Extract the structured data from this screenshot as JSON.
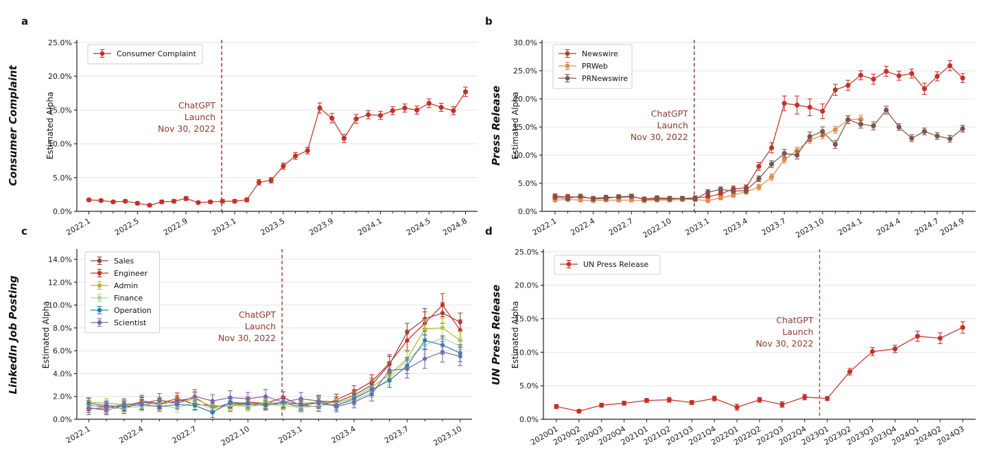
{
  "figure": {
    "background": "#ffffff",
    "grid_color": "#e4e4e4",
    "spine_color": "#1f1f1f",
    "tick_text_color": "#1a1a1a",
    "annotation_color": "#8e3a2c",
    "launch_label_lines": [
      "ChatGPT",
      "Launch",
      "Nov 30, 2022"
    ]
  },
  "chart_data": [
    {
      "id": "a",
      "type": "line",
      "panel_label": "a",
      "outer_title": "Consumer Complaint",
      "ylabel": "Estimated Alpha",
      "legend_position": "top-left",
      "grid": "horizontal",
      "x": [
        "2022.1",
        "2022.2",
        "2022.3",
        "2022.4",
        "2022.5",
        "2022.6",
        "2022.7",
        "2022.8",
        "2022.9",
        "2022.10",
        "2022.11",
        "2022.12",
        "2023.1",
        "2023.2",
        "2023.3",
        "2023.4",
        "2023.5",
        "2023.6",
        "2023.7",
        "2023.8",
        "2023.9",
        "2023.10",
        "2023.11",
        "2023.12",
        "2024.1",
        "2024.2",
        "2024.3",
        "2024.4",
        "2024.5",
        "2024.6",
        "2024.7",
        "2024.8"
      ],
      "x_tick_indices": [
        0,
        4,
        8,
        12,
        16,
        20,
        24,
        28,
        31
      ],
      "yticks": [
        0,
        5,
        10,
        15,
        20,
        25
      ],
      "ylim": [
        0,
        25.4
      ],
      "launch_index": 10.93,
      "launch_color": "#7e2f28",
      "series": [
        {
          "name": "Consumer Complaint",
          "color": "#c43227",
          "values": [
            1.7,
            1.6,
            1.4,
            1.5,
            1.2,
            0.9,
            1.4,
            1.5,
            1.9,
            1.3,
            1.4,
            1.5,
            1.5,
            1.7,
            4.3,
            4.6,
            6.7,
            8.2,
            9.0,
            15.3,
            13.8,
            10.8,
            13.7,
            14.3,
            14.2,
            14.9,
            15.3,
            15.0,
            16.0,
            15.4,
            14.9,
            17.7
          ],
          "errors": [
            0.2,
            0.2,
            0.2,
            0.2,
            0.2,
            0.2,
            0.25,
            0.25,
            0.3,
            0.2,
            0.2,
            0.25,
            0.25,
            0.3,
            0.4,
            0.4,
            0.45,
            0.5,
            0.5,
            0.75,
            0.7,
            0.6,
            0.65,
            0.6,
            0.6,
            0.6,
            0.6,
            0.6,
            0.65,
            0.6,
            0.6,
            0.7
          ]
        }
      ]
    },
    {
      "id": "b",
      "type": "line",
      "panel_label": "b",
      "outer_title": "Press Release",
      "ylabel": "Estimated Alpha",
      "legend_position": "top-left",
      "grid": "horizontal",
      "x": [
        "2022.1",
        "2022.2",
        "2022.3",
        "2022.4",
        "2022.5",
        "2022.6",
        "2022.7",
        "2022.8",
        "2022.9",
        "2022.10",
        "2022.11",
        "2022.12",
        "2023.1",
        "2023.2",
        "2023.3",
        "2023.4",
        "2023.5",
        "2023.6",
        "2023.7",
        "2023.8",
        "2023.9",
        "2023.10",
        "2023.11",
        "2023.12",
        "2024.1",
        "2024.2",
        "2024.3",
        "2024.4",
        "2024.5",
        "2024.6",
        "2024.7",
        "2024.8",
        "2024.9"
      ],
      "x_tick_indices": [
        0,
        3,
        6,
        9,
        12,
        15,
        18,
        21,
        24,
        27,
        30,
        32
      ],
      "yticks": [
        0,
        5,
        10,
        15,
        20,
        25,
        30
      ],
      "ylim": [
        0,
        30.5
      ],
      "launch_index": 10.93,
      "launch_color": "#7e2f28",
      "series": [
        {
          "name": "Newswire",
          "color": "#c43227",
          "values": [
            2.7,
            2.6,
            2.5,
            2.3,
            2.5,
            2.5,
            2.6,
            2.2,
            2.4,
            2.3,
            2.3,
            2.4,
            2.6,
            3.1,
            4.0,
            4.2,
            8.0,
            11.3,
            19.2,
            18.9,
            18.5,
            17.8,
            21.6,
            22.4,
            24.2,
            23.5,
            24.9,
            24.1,
            24.5,
            21.8,
            24.0,
            25.9,
            23.7
          ],
          "errors": [
            0.4,
            0.4,
            0.35,
            0.35,
            0.35,
            0.35,
            0.4,
            0.35,
            0.35,
            0.35,
            0.35,
            0.35,
            0.4,
            0.45,
            0.5,
            0.5,
            0.7,
            0.9,
            1.3,
            1.6,
            1.5,
            1.3,
            1.0,
            0.9,
            0.8,
            0.9,
            0.9,
            0.8,
            0.8,
            1.0,
            0.8,
            0.9,
            0.8
          ]
        },
        {
          "name": "PRWeb",
          "color": "#e58b4a",
          "values": [
            2.0,
            2.1,
            2.0,
            1.9,
            2.0,
            2.0,
            2.0,
            1.9,
            2.0,
            2.0,
            2.1,
            2.1,
            1.9,
            2.4,
            2.9,
            3.5,
            4.3,
            6.1,
            9.2,
            10.8,
            12.7,
            13.5,
            14.5,
            16.3,
            16.4
          ],
          "errors": [
            0.3,
            0.3,
            0.3,
            0.3,
            0.3,
            0.3,
            0.3,
            0.3,
            0.3,
            0.3,
            0.3,
            0.3,
            0.3,
            0.35,
            0.4,
            0.45,
            0.5,
            0.55,
            0.6,
            0.6,
            0.6,
            0.6,
            0.6,
            0.65,
            0.7
          ]
        },
        {
          "name": "PRNewswire",
          "color": "#7a564e",
          "values": [
            2.5,
            2.3,
            2.7,
            2.2,
            2.3,
            2.6,
            2.7,
            2.1,
            2.2,
            2.2,
            2.3,
            2.2,
            3.4,
            3.9,
            3.6,
            3.7,
            5.8,
            8.4,
            10.3,
            10.0,
            13.3,
            14.2,
            11.9,
            16.3,
            15.5,
            15.2,
            18.0,
            15.0,
            13.0,
            14.2,
            13.4,
            12.9,
            14.7
          ],
          "errors": [
            0.35,
            0.35,
            0.35,
            0.35,
            0.35,
            0.35,
            0.35,
            0.35,
            0.35,
            0.35,
            0.35,
            0.35,
            0.45,
            0.45,
            0.4,
            0.45,
            0.5,
            0.6,
            0.7,
            0.7,
            0.8,
            0.8,
            0.7,
            0.7,
            0.7,
            0.7,
            0.7,
            0.6,
            0.6,
            0.6,
            0.6,
            0.6,
            0.6
          ]
        }
      ]
    },
    {
      "id": "c",
      "type": "line",
      "panel_label": "c",
      "outer_title": "LinkedIn Job Posting",
      "ylabel": "Estimated Alpha",
      "legend_position": "top-left",
      "grid": "horizontal",
      "x": [
        "2022.1",
        "2022.2",
        "2022.3",
        "2022.4",
        "2022.5",
        "2022.6",
        "2022.7",
        "2022.8",
        "2022.9",
        "2022.10",
        "2022.11",
        "2022.12",
        "2023.1",
        "2023.2",
        "2023.3",
        "2023.4",
        "2023.5",
        "2023.6",
        "2023.7",
        "2023.8",
        "2023.9",
        "2023.10"
      ],
      "x_tick_indices": [
        0,
        3,
        6,
        9,
        12,
        15,
        18,
        21
      ],
      "yticks": [
        0,
        2,
        4,
        6,
        8,
        10,
        12,
        14
      ],
      "ylim": [
        0,
        14.9
      ],
      "launch_index": 10.93,
      "launch_color": "#8a3a2c",
      "series": [
        {
          "name": "Sales",
          "color": "#8a4a42",
          "values": [
            1.0,
            0.8,
            1.2,
            1.5,
            1.3,
            1.6,
            1.9,
            1.0,
            1.4,
            1.3,
            1.2,
            1.4,
            1.1,
            1.6,
            1.5,
            2.1,
            3.0,
            4.8,
            7.6,
            8.8,
            9.3,
            8.5
          ],
          "errors": [
            0.4,
            0.4,
            0.4,
            0.45,
            0.4,
            0.45,
            0.5,
            0.4,
            0.45,
            0.4,
            0.4,
            0.45,
            0.4,
            0.45,
            0.45,
            0.5,
            0.6,
            0.7,
            0.8,
            0.9,
            0.9,
            0.8
          ]
        },
        {
          "name": "Engineer",
          "color": "#cc2d25",
          "values": [
            1.2,
            1.1,
            0.9,
            1.6,
            1.4,
            1.8,
            1.3,
            1.2,
            1.1,
            1.5,
            1.4,
            1.9,
            1.2,
            1.1,
            1.7,
            2.4,
            3.3,
            4.9,
            6.9,
            8.4,
            10.0,
            7.8
          ],
          "errors": [
            0.45,
            0.4,
            0.4,
            0.5,
            0.45,
            0.5,
            0.45,
            0.4,
            0.4,
            0.45,
            0.45,
            0.5,
            0.4,
            0.4,
            0.5,
            0.55,
            0.6,
            0.75,
            0.9,
            1.0,
            1.0,
            0.9
          ]
        },
        {
          "name": "Admin",
          "color": "#b9ba2c",
          "values": [
            1.5,
            1.4,
            1.3,
            1.2,
            1.5,
            1.4,
            1.8,
            1.1,
            1.3,
            1.2,
            1.5,
            1.3,
            1.4,
            1.5,
            1.4,
            1.9,
            2.8,
            3.9,
            5.3,
            7.9,
            8.0,
            6.9
          ],
          "errors": [
            0.4,
            0.4,
            0.4,
            0.4,
            0.45,
            0.4,
            0.5,
            0.4,
            0.4,
            0.4,
            0.45,
            0.4,
            0.4,
            0.45,
            0.4,
            0.5,
            0.55,
            0.65,
            0.75,
            0.85,
            0.85,
            0.8
          ]
        },
        {
          "name": "Finance",
          "color": "#aed6a0",
          "values": [
            1.3,
            0.9,
            1.0,
            1.1,
            1.2,
            1.0,
            1.5,
            0.9,
            1.2,
            1.1,
            1.3,
            1.2,
            1.0,
            1.2,
            1.3,
            1.6,
            2.4,
            3.6,
            5.2,
            6.5,
            7.1,
            6.4
          ],
          "errors": [
            0.45,
            0.4,
            0.4,
            0.4,
            0.4,
            0.4,
            0.45,
            0.4,
            0.4,
            0.4,
            0.4,
            0.4,
            0.4,
            0.4,
            0.4,
            0.45,
            0.5,
            0.6,
            0.7,
            0.8,
            0.8,
            0.75
          ]
        },
        {
          "name": "Operation",
          "color": "#2e7eb3",
          "values": [
            1.4,
            1.2,
            1.1,
            1.3,
            1.1,
            1.3,
            1.2,
            0.6,
            1.5,
            1.4,
            1.3,
            1.5,
            1.3,
            1.4,
            1.2,
            1.8,
            2.6,
            3.4,
            4.7,
            6.9,
            6.5,
            5.8
          ],
          "errors": [
            0.45,
            0.4,
            0.4,
            0.45,
            0.4,
            0.4,
            0.4,
            0.45,
            0.45,
            0.4,
            0.4,
            0.45,
            0.4,
            0.45,
            0.4,
            0.5,
            0.55,
            0.6,
            0.7,
            0.8,
            0.8,
            0.75
          ]
        },
        {
          "name": "Scientist",
          "color": "#7b68ae",
          "values": [
            0.9,
            1.0,
            1.3,
            1.4,
            1.7,
            1.4,
            2.0,
            1.6,
            1.9,
            1.8,
            2.0,
            1.5,
            1.8,
            1.6,
            1.1,
            1.5,
            2.2,
            4.3,
            4.4,
            5.3,
            5.9,
            5.5
          ],
          "errors": [
            0.5,
            0.45,
            0.5,
            0.5,
            0.55,
            0.5,
            0.6,
            0.55,
            0.6,
            0.55,
            0.6,
            0.5,
            0.55,
            0.5,
            0.45,
            0.5,
            0.6,
            0.75,
            0.8,
            0.85,
            0.9,
            0.8
          ]
        }
      ]
    },
    {
      "id": "d",
      "type": "line",
      "panel_label": "d",
      "outer_title": "UN Press Release",
      "ylabel": "Estimated Alpha",
      "legend_position": "top-left",
      "grid": "horizontal",
      "x": [
        "2020Q1",
        "2020Q2",
        "2020Q3",
        "2020Q4",
        "2021Q1",
        "2021Q2",
        "2021Q3",
        "2021Q4",
        "2022Q1",
        "2022Q2",
        "2022Q3",
        "2022Q4",
        "2023Q1",
        "2023Q2",
        "2023Q3",
        "2023Q4",
        "2024Q1",
        "2024Q2",
        "2024Q3"
      ],
      "x_tick_indices": [
        0,
        1,
        2,
        3,
        4,
        5,
        6,
        7,
        8,
        9,
        10,
        11,
        12,
        13,
        14,
        15,
        16,
        17,
        18
      ],
      "yticks": [
        0,
        5,
        10,
        15,
        20,
        25
      ],
      "ylim": [
        0,
        25.4
      ],
      "launch_index": 11.66,
      "launch_color": "#c23a2c",
      "series": [
        {
          "name": "UN Press Release",
          "color": "#c43227",
          "values": [
            1.9,
            1.2,
            2.1,
            2.4,
            2.8,
            2.9,
            2.5,
            3.1,
            1.8,
            2.9,
            2.2,
            3.3,
            3.1,
            7.1,
            10.1,
            10.5,
            12.4,
            12.1,
            13.7
          ],
          "errors": [
            0.3,
            0.25,
            0.3,
            0.3,
            0.3,
            0.35,
            0.3,
            0.35,
            0.45,
            0.35,
            0.4,
            0.4,
            0.3,
            0.5,
            0.6,
            0.55,
            0.75,
            0.8,
            0.85
          ]
        }
      ]
    }
  ]
}
